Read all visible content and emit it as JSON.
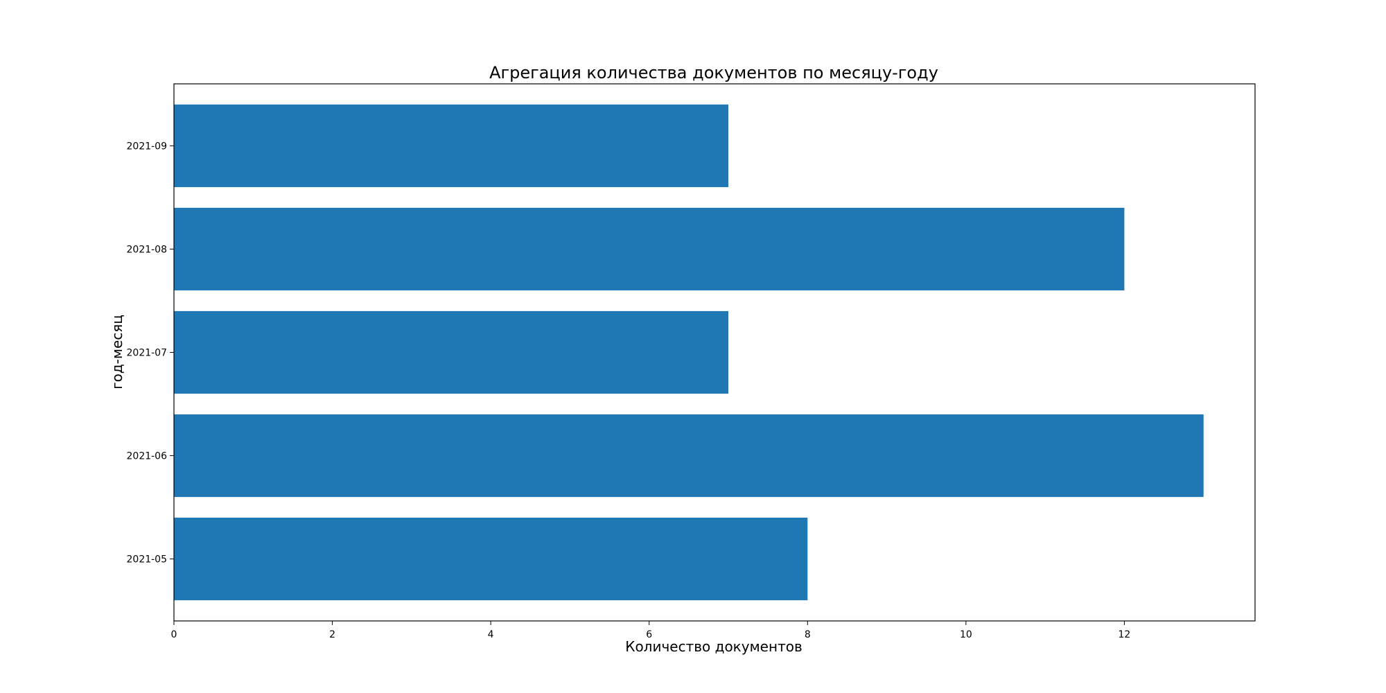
{
  "chart_data": {
    "type": "bar",
    "orientation": "horizontal",
    "title": "Агрегация количества документов по месяцу-году",
    "xlabel": "Количество документов",
    "ylabel": "год-месяц",
    "categories": [
      "2021-05",
      "2021-06",
      "2021-07",
      "2021-08",
      "2021-09"
    ],
    "values": [
      8,
      13,
      7,
      12,
      7
    ],
    "xlim": [
      0,
      13.65
    ],
    "xticks": [
      0,
      2,
      4,
      6,
      8,
      10,
      12
    ],
    "grid": false,
    "bar_color": "#1f77b4"
  }
}
